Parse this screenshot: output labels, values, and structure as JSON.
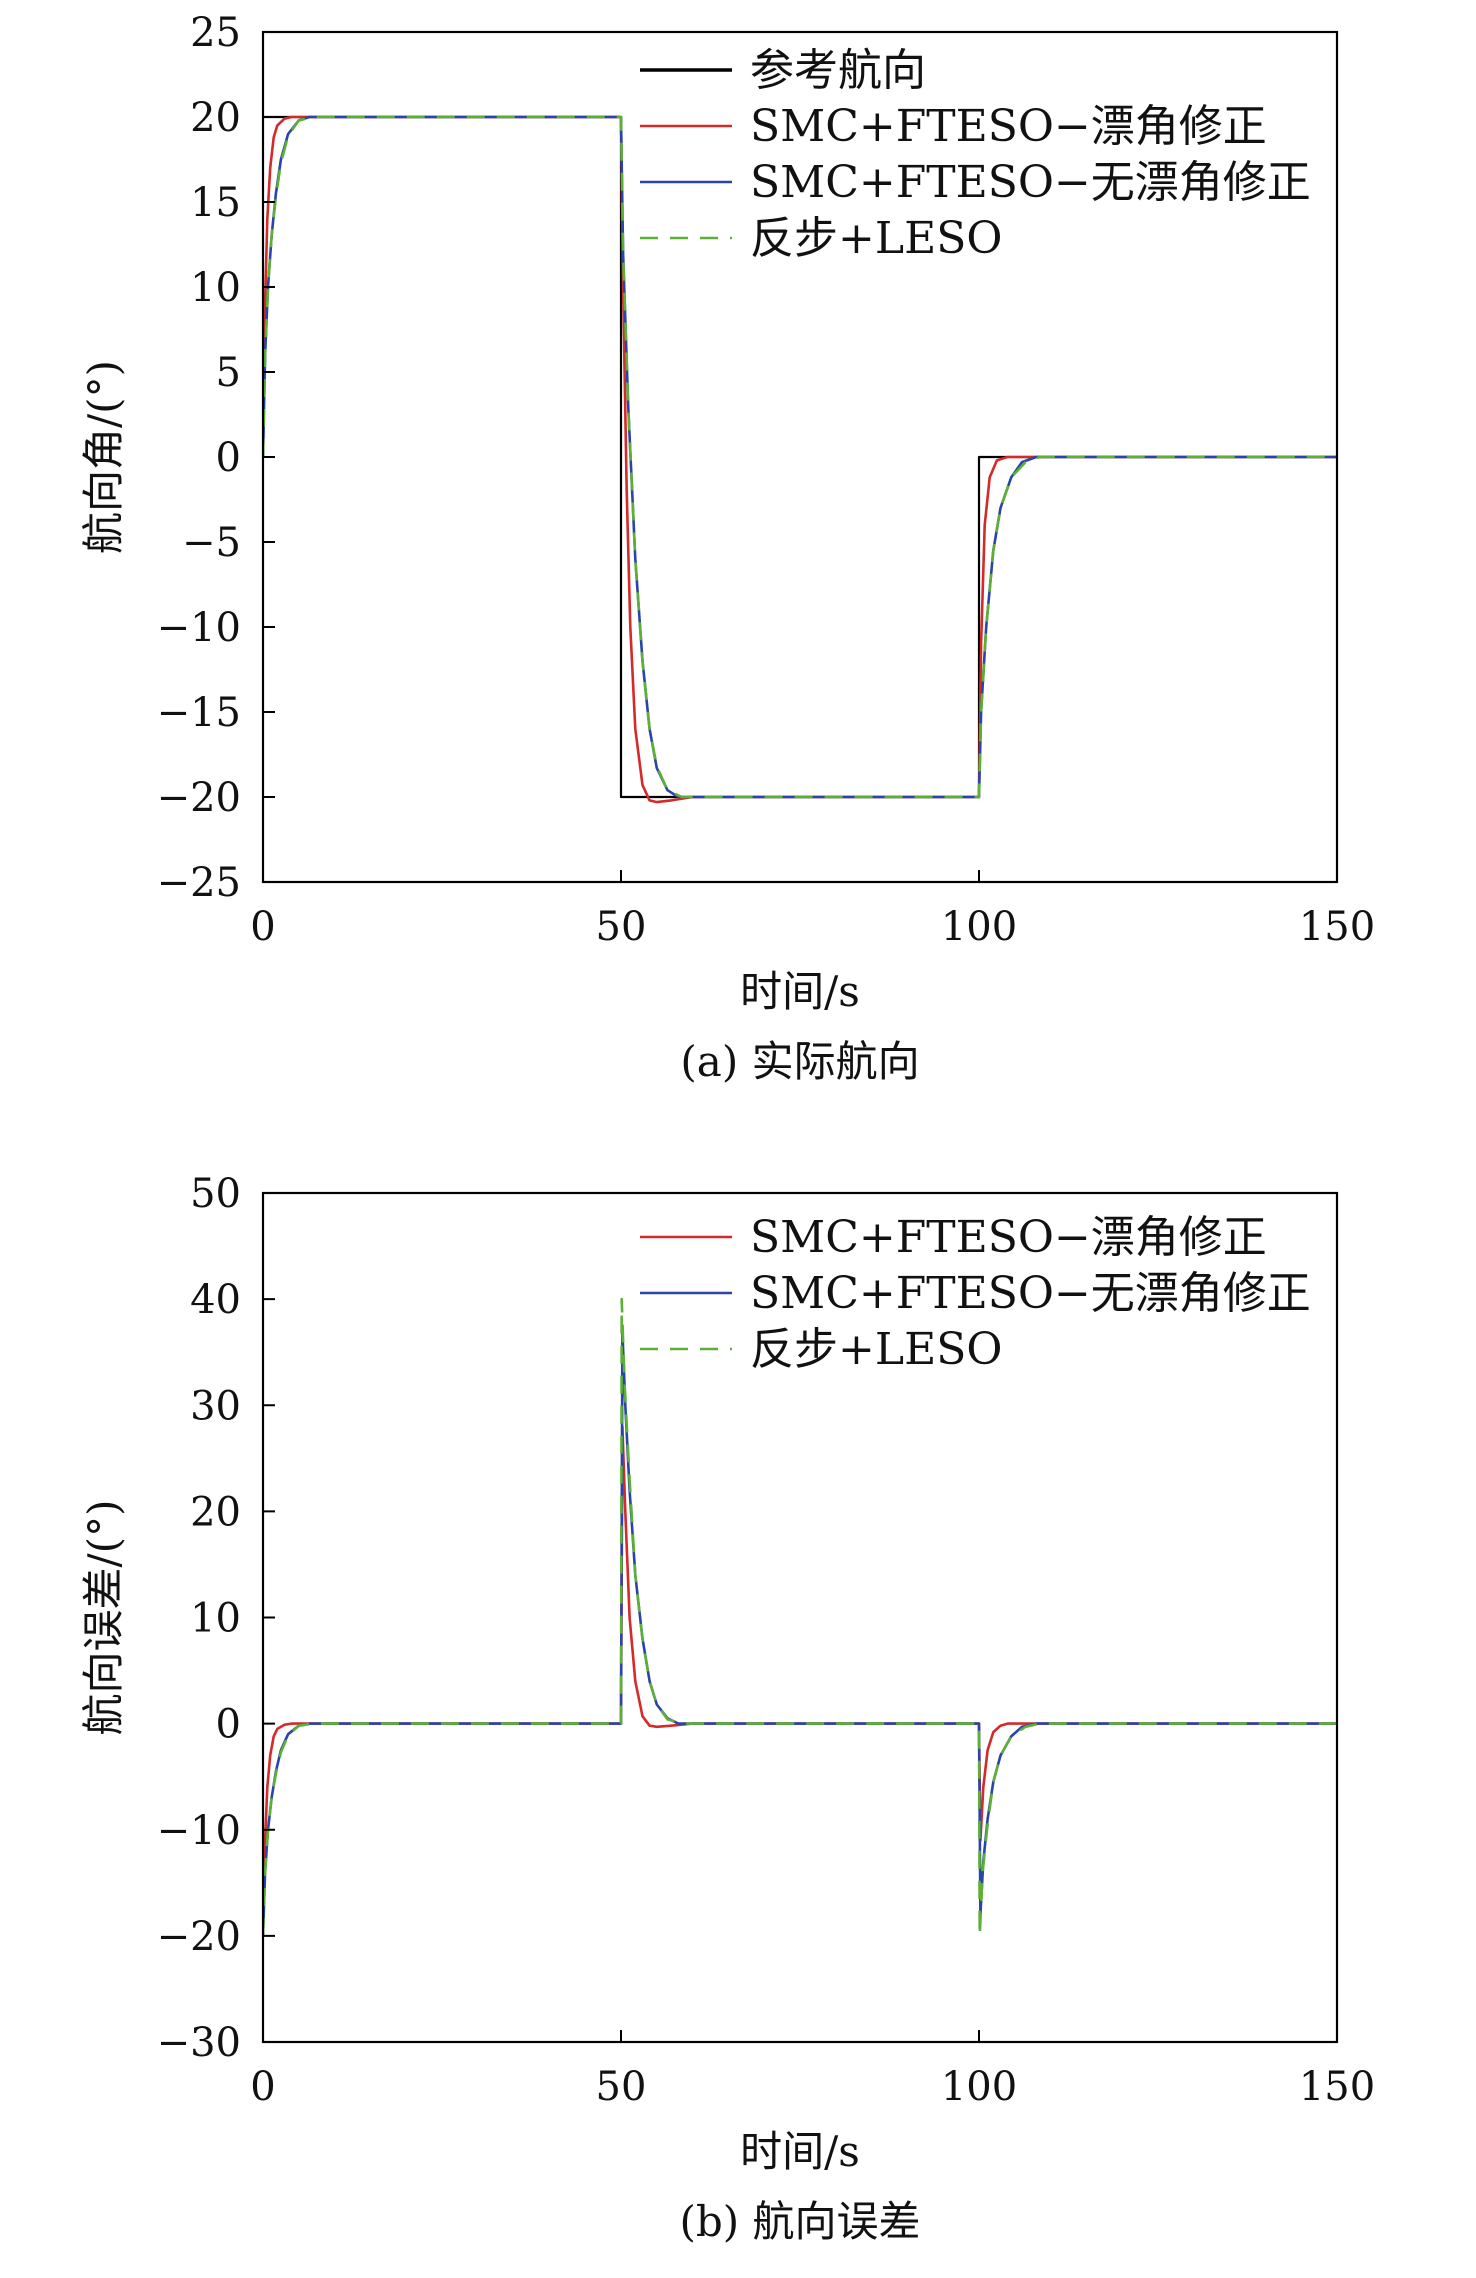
{
  "colors": {
    "reference": "#000000",
    "smc_drift": "#d42a2a",
    "smc_nodrift": "#2b44a8",
    "backstep": "#5cb036"
  },
  "chart_data": [
    {
      "id": "a",
      "type": "line",
      "caption": "(a) 实际航向",
      "xlabel": "时间/s",
      "ylabel": "航向角/(°)",
      "xlim": [
        0,
        150
      ],
      "ylim": [
        -25,
        25
      ],
      "xticks": [
        0,
        50,
        100,
        150
      ],
      "yticks": [
        -25,
        -20,
        -15,
        -10,
        -5,
        0,
        5,
        10,
        15,
        20,
        25
      ],
      "legend_position": "top-right",
      "grid": false,
      "series": [
        {
          "name": "参考航向",
          "color": "#000000",
          "dash": "",
          "points": [
            [
              0,
              20
            ],
            [
              50,
              20
            ],
            [
              50,
              -20
            ],
            [
              100,
              -20
            ],
            [
              100,
              0
            ],
            [
              150,
              0
            ]
          ]
        },
        {
          "name": "SMC+FTESO−漂角修正",
          "color": "#d42a2a",
          "dash": "",
          "points": [
            [
              0,
              0
            ],
            [
              0.3,
              9
            ],
            [
              0.6,
              14
            ],
            [
              1,
              17
            ],
            [
              1.5,
              18.8
            ],
            [
              2,
              19.5
            ],
            [
              3,
              19.9
            ],
            [
              4,
              20
            ],
            [
              50,
              20
            ],
            [
              50.3,
              10
            ],
            [
              50.8,
              -2
            ],
            [
              51.3,
              -10
            ],
            [
              52,
              -16
            ],
            [
              53,
              -19.3
            ],
            [
              54,
              -20.2
            ],
            [
              55,
              -20.3
            ],
            [
              57,
              -20.2
            ],
            [
              60,
              -20
            ],
            [
              100,
              -20
            ],
            [
              100.3,
              -11
            ],
            [
              100.8,
              -4
            ],
            [
              101.5,
              -1.2
            ],
            [
              102.5,
              -0.2
            ],
            [
              104,
              0
            ],
            [
              150,
              0
            ]
          ]
        },
        {
          "name": "SMC+FTESO−无漂角修正",
          "color": "#2b44a8",
          "dash": "",
          "points": [
            [
              0,
              0
            ],
            [
              0.3,
              6
            ],
            [
              0.7,
              10
            ],
            [
              1.2,
              13
            ],
            [
              1.8,
              15.5
            ],
            [
              2.5,
              17.5
            ],
            [
              3.5,
              19
            ],
            [
              5,
              19.8
            ],
            [
              6.5,
              20
            ],
            [
              50,
              20
            ],
            [
              50.3,
              12
            ],
            [
              51,
              3
            ],
            [
              52,
              -6
            ],
            [
              53,
              -12
            ],
            [
              54,
              -16
            ],
            [
              55,
              -18.3
            ],
            [
              56.5,
              -19.6
            ],
            [
              58,
              -20
            ],
            [
              100,
              -20
            ],
            [
              100.3,
              -15
            ],
            [
              101,
              -10
            ],
            [
              102,
              -5.5
            ],
            [
              103,
              -3
            ],
            [
              104.5,
              -1.2
            ],
            [
              106,
              -0.3
            ],
            [
              108,
              0
            ],
            [
              150,
              0
            ]
          ]
        },
        {
          "name": "反步+LESO",
          "color": "#5cb036",
          "dash": "18,12",
          "points": [
            [
              0,
              0
            ],
            [
              0.3,
              6
            ],
            [
              0.7,
              10
            ],
            [
              1.2,
              13
            ],
            [
              1.8,
              15.3
            ],
            [
              2.5,
              17.3
            ],
            [
              3.5,
              18.9
            ],
            [
              5,
              19.8
            ],
            [
              7,
              20
            ],
            [
              50,
              20
            ],
            [
              50.3,
              12
            ],
            [
              51,
              3
            ],
            [
              52,
              -6
            ],
            [
              53,
              -12
            ],
            [
              54,
              -16
            ],
            [
              55,
              -18.2
            ],
            [
              56.5,
              -19.6
            ],
            [
              58.5,
              -20
            ],
            [
              100,
              -20
            ],
            [
              100.3,
              -15
            ],
            [
              101,
              -10
            ],
            [
              102,
              -5.5
            ],
            [
              103,
              -3
            ],
            [
              104.5,
              -1.2
            ],
            [
              106.5,
              -0.3
            ],
            [
              108.5,
              0
            ],
            [
              150,
              0
            ]
          ]
        }
      ]
    },
    {
      "id": "b",
      "type": "line",
      "caption": "(b) 航向误差",
      "xlabel": "时间/s",
      "ylabel": "航向误差/(°)",
      "xlim": [
        0,
        150
      ],
      "ylim": [
        -30,
        50
      ],
      "xticks": [
        0,
        50,
        100,
        150
      ],
      "yticks": [
        -30,
        -20,
        -10,
        0,
        10,
        20,
        30,
        40,
        50
      ],
      "legend_position": "top-right",
      "grid": false,
      "series": [
        {
          "name": "SMC+FTESO−漂角修正",
          "color": "#d42a2a",
          "dash": "",
          "points": [
            [
              0,
              -20
            ],
            [
              0.3,
              -11
            ],
            [
              0.6,
              -6
            ],
            [
              1,
              -3
            ],
            [
              1.5,
              -1.2
            ],
            [
              2,
              -0.5
            ],
            [
              3,
              -0.1
            ],
            [
              4,
              0
            ],
            [
              50,
              0
            ],
            [
              50.2,
              28
            ],
            [
              50.6,
              20
            ],
            [
              51.2,
              10
            ],
            [
              52,
              4
            ],
            [
              53,
              0.7
            ],
            [
              54,
              -0.2
            ],
            [
              55,
              -0.3
            ],
            [
              57,
              -0.2
            ],
            [
              60,
              0
            ],
            [
              100,
              0
            ],
            [
              100.2,
              -11
            ],
            [
              100.6,
              -6
            ],
            [
              101.2,
              -2.5
            ],
            [
              102,
              -0.8
            ],
            [
              103,
              -0.2
            ],
            [
              104,
              0
            ],
            [
              150,
              0
            ]
          ]
        },
        {
          "name": "SMC+FTESO−无漂角修正",
          "color": "#2b44a8",
          "dash": "",
          "points": [
            [
              0,
              -20
            ],
            [
              0.3,
              -14
            ],
            [
              0.7,
              -10
            ],
            [
              1.2,
              -7
            ],
            [
              1.8,
              -4.5
            ],
            [
              2.5,
              -2.5
            ],
            [
              3.5,
              -1
            ],
            [
              5,
              -0.2
            ],
            [
              6.5,
              0
            ],
            [
              50,
              0
            ],
            [
              50.2,
              37
            ],
            [
              50.6,
              30
            ],
            [
              51.2,
              22
            ],
            [
              52,
              14
            ],
            [
              53,
              8
            ],
            [
              54,
              4
            ],
            [
              55,
              1.8
            ],
            [
              56.5,
              0.5
            ],
            [
              58,
              0
            ],
            [
              100,
              0
            ],
            [
              100.2,
              -18
            ],
            [
              100.6,
              -13
            ],
            [
              101.2,
              -9
            ],
            [
              102,
              -5.5
            ],
            [
              103,
              -3
            ],
            [
              104.5,
              -1.2
            ],
            [
              106,
              -0.3
            ],
            [
              108,
              0
            ],
            [
              150,
              0
            ]
          ]
        },
        {
          "name": "反步+LESO",
          "color": "#5cb036",
          "dash": "18,12",
          "points": [
            [
              0,
              -20
            ],
            [
              0.3,
              -14
            ],
            [
              0.7,
              -10
            ],
            [
              1.2,
              -7
            ],
            [
              1.8,
              -4.7
            ],
            [
              2.5,
              -2.7
            ],
            [
              3.5,
              -1.1
            ],
            [
              5,
              -0.2
            ],
            [
              7,
              0
            ],
            [
              50,
              0
            ],
            [
              50.1,
              40
            ],
            [
              50.5,
              32
            ],
            [
              51.2,
              23
            ],
            [
              52,
              14
            ],
            [
              53,
              8
            ],
            [
              54,
              4
            ],
            [
              55,
              1.8
            ],
            [
              56.5,
              0.4
            ],
            [
              58.5,
              0
            ],
            [
              100,
              0
            ],
            [
              100.1,
              -20
            ],
            [
              100.5,
              -14
            ],
            [
              101.2,
              -9.5
            ],
            [
              102,
              -5.5
            ],
            [
              103,
              -3
            ],
            [
              104.5,
              -1.2
            ],
            [
              106.5,
              -0.3
            ],
            [
              108.5,
              0
            ],
            [
              150,
              0
            ]
          ]
        }
      ]
    }
  ]
}
